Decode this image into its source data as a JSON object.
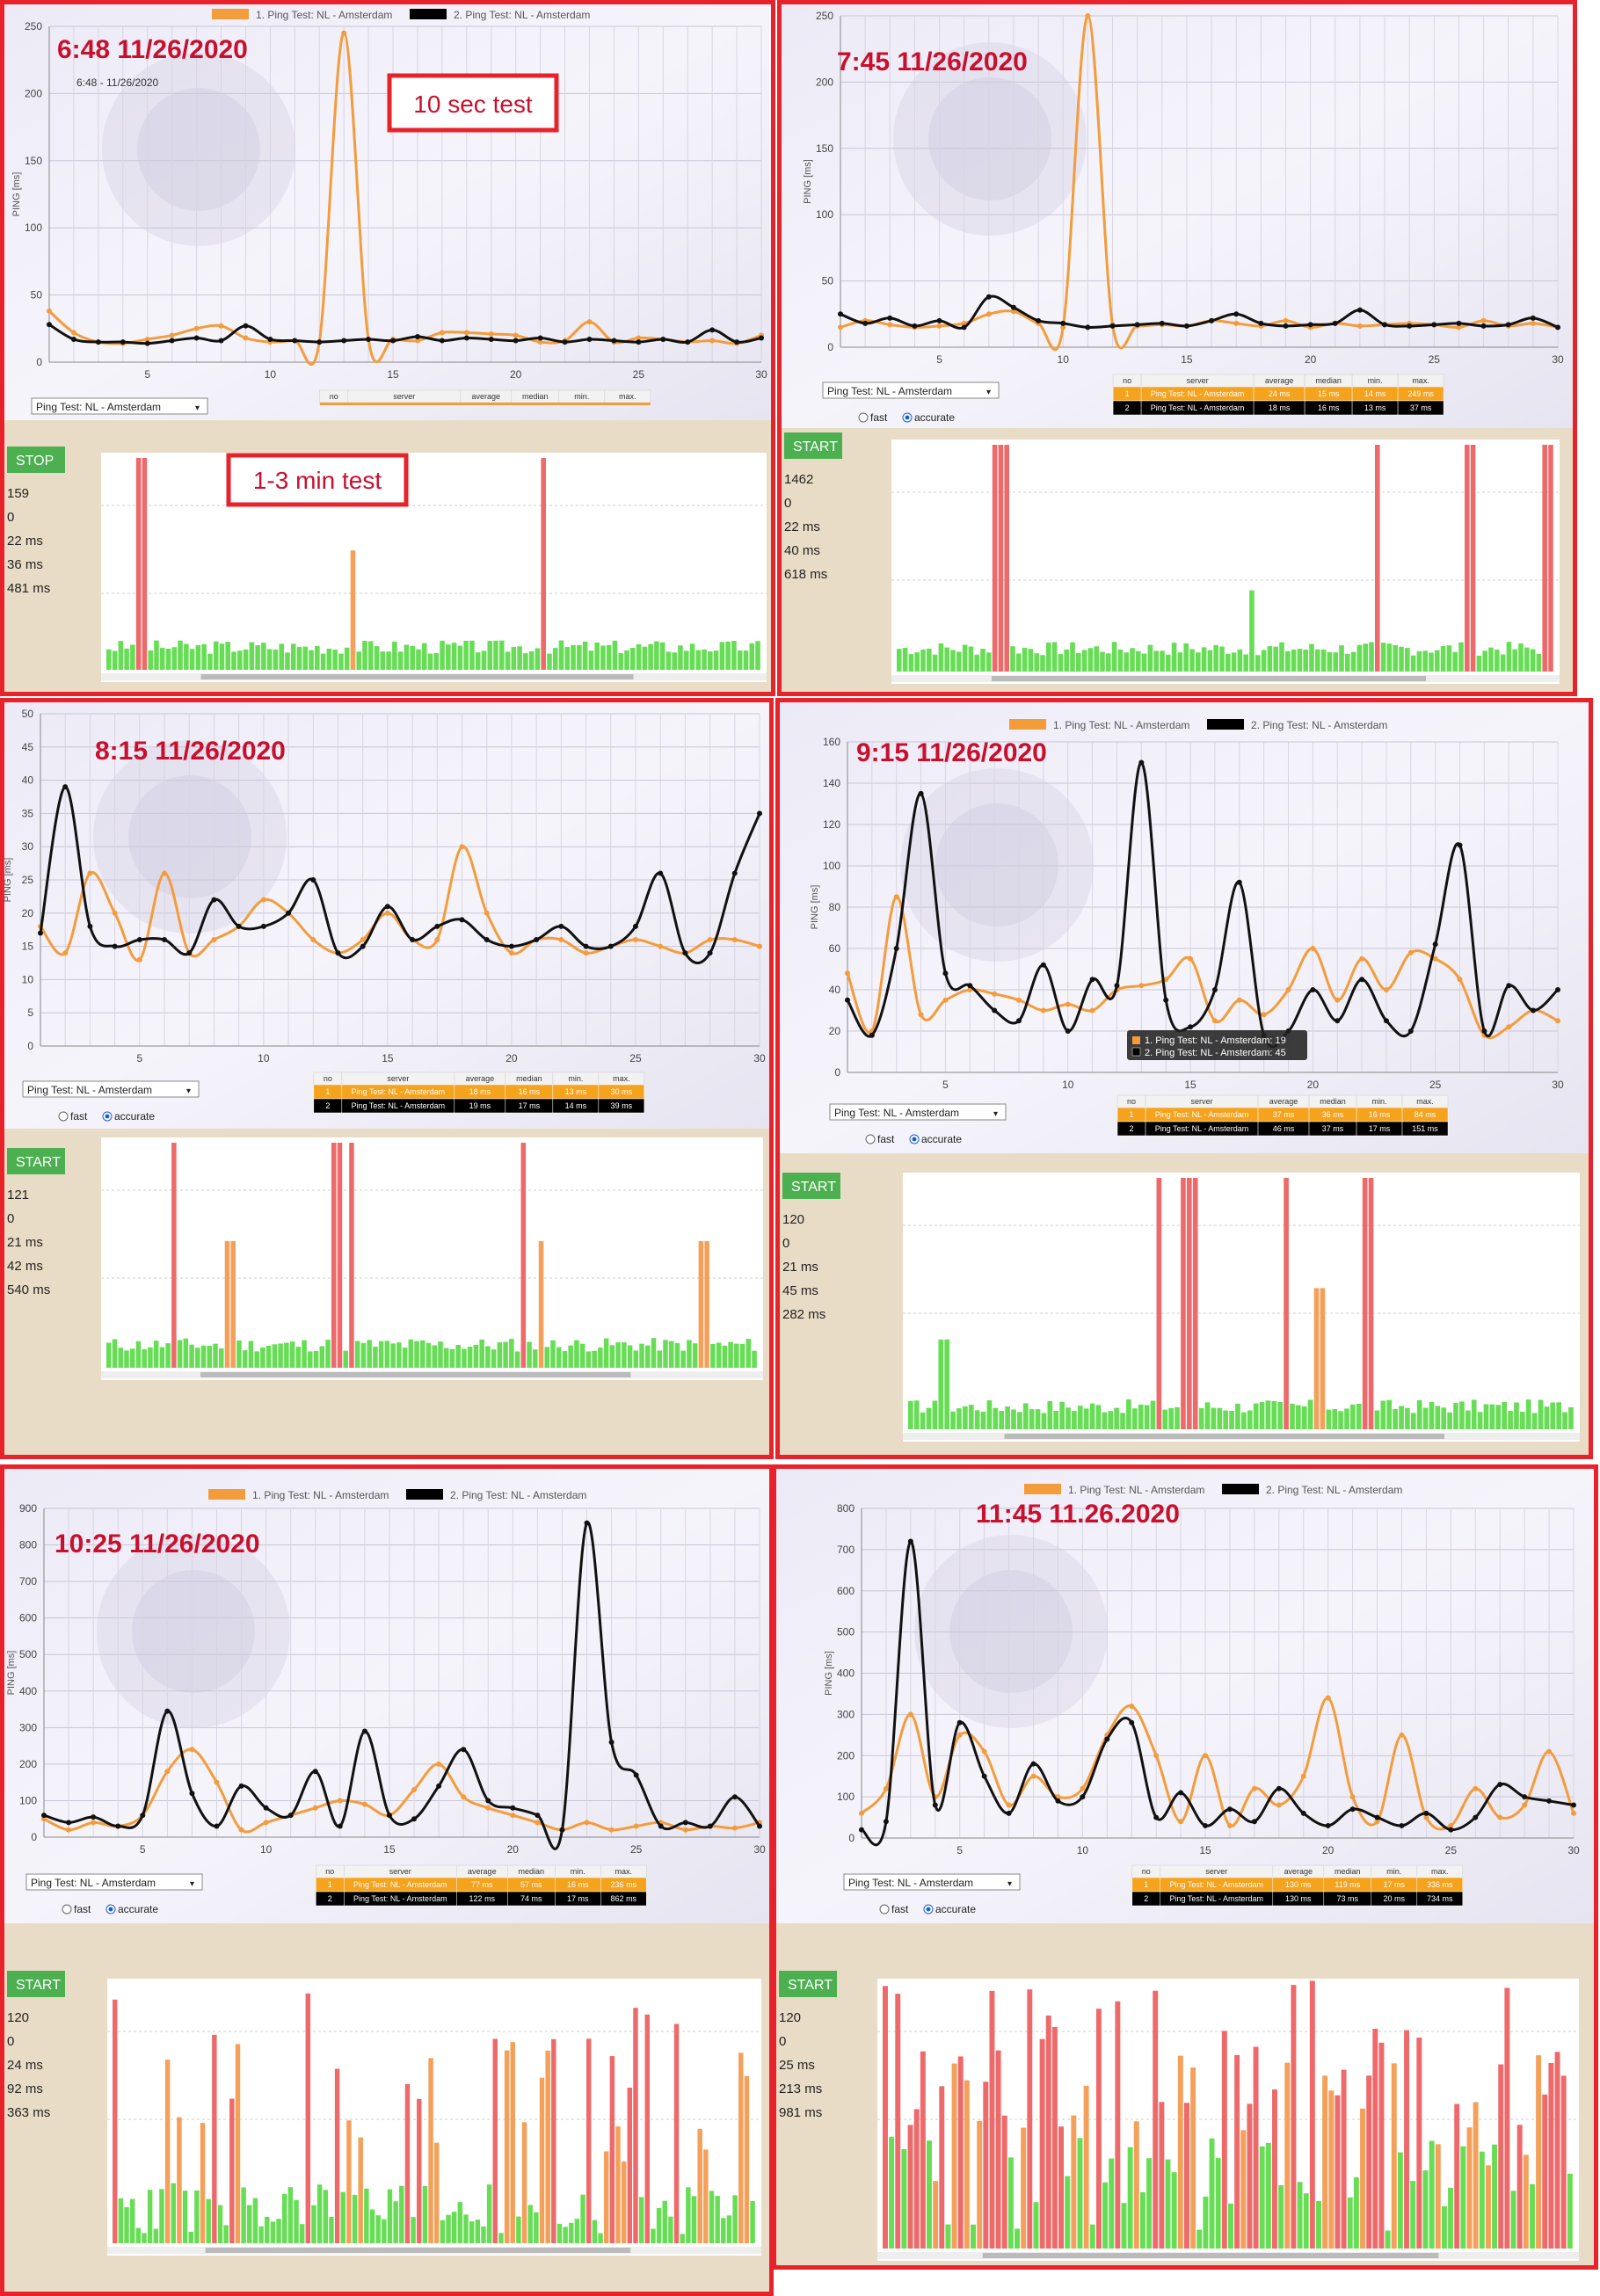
{
  "legend": {
    "series1": "1. Ping Test: NL - Amsterdam",
    "series2": "2. Ping Test: NL - Amsterdam",
    "series1_color": "#f39c3c",
    "series2_color": "#000000"
  },
  "axis_label": "PING [ms]",
  "table_headers": [
    "no",
    "server",
    "average",
    "median",
    "min.",
    "max."
  ],
  "server_select": "Ping Test: NL - Amsterdam",
  "radio_fast": "fast",
  "radio_accurate": "accurate",
  "unit": "ms",
  "colors": {
    "frame": "#e8222b",
    "start_btn": "#4caf50",
    "bar_green": "#66dd55",
    "bar_orange": "#f4a05a",
    "bar_red": "#ee6a6a",
    "timestamp": "#c8102e"
  },
  "annotations": {
    "ten_sec": "10 sec test",
    "one_three_min": "1-3 min test"
  },
  "tooltip": {
    "line1": "1. Ping Test: NL - Amsterdam: 19",
    "line2": "2. Ping Test: NL - Amsterdam: 45"
  },
  "chart_data": [
    {
      "id": "p1",
      "type": "line",
      "timestamp": "6:48 11/26/2020",
      "subtitle": "6:48 - 11/26/2020",
      "ylim": [
        0,
        250
      ],
      "yticks": [
        0,
        50,
        100,
        150,
        200,
        250
      ],
      "xticks": [
        5,
        10,
        15,
        20,
        25,
        30
      ],
      "series": [
        {
          "name": "1. Ping Test: NL - Amsterdam",
          "values": [
            38,
            22,
            15,
            14,
            17,
            20,
            25,
            27,
            18,
            15,
            16,
            15,
            245,
            17,
            17,
            16,
            22,
            22,
            21,
            20,
            15,
            16,
            30,
            15,
            18,
            17,
            15,
            16,
            14,
            20
          ]
        },
        {
          "name": "2. Ping Test: NL - Amsterdam",
          "values": [
            28,
            17,
            15,
            15,
            14,
            16,
            18,
            16,
            27,
            17,
            16,
            15,
            16,
            17,
            16,
            19,
            16,
            18,
            17,
            16,
            18,
            15,
            17,
            16,
            15,
            17,
            15,
            24,
            15,
            18
          ]
        }
      ],
      "table": [],
      "button": "STOP",
      "stats": [
        "159",
        "0",
        "22 ms",
        "36 ms",
        "481 ms"
      ]
    },
    {
      "id": "p2",
      "type": "line",
      "timestamp": "7:45 11/26/2020",
      "ylim": [
        0,
        250
      ],
      "yticks": [
        0,
        50,
        100,
        150,
        200,
        250
      ],
      "xticks": [
        5,
        10,
        15,
        20,
        25,
        30
      ],
      "series": [
        {
          "name": "1. Ping Test: NL - Amsterdam",
          "values": [
            15,
            20,
            17,
            15,
            16,
            18,
            25,
            27,
            18,
            15,
            250,
            17,
            16,
            17,
            16,
            20,
            18,
            16,
            20,
            15,
            18,
            16,
            17,
            18,
            17,
            15,
            20,
            16,
            18,
            15
          ]
        },
        {
          "name": "2. Ping Test: NL - Amsterdam",
          "values": [
            25,
            18,
            22,
            16,
            20,
            15,
            38,
            30,
            20,
            18,
            15,
            16,
            17,
            18,
            16,
            20,
            25,
            18,
            16,
            17,
            18,
            28,
            17,
            16,
            17,
            18,
            16,
            17,
            22,
            15
          ]
        }
      ],
      "table": [
        [
          "1",
          "Ping Test: NL - Amsterdam",
          "24 ms",
          "15 ms",
          "14 ms",
          "249 ms"
        ],
        [
          "2",
          "Ping Test: NL - Amsterdam",
          "18 ms",
          "16 ms",
          "13 ms",
          "37 ms"
        ]
      ],
      "button": "START",
      "stats": [
        "1462",
        "0",
        "22 ms",
        "40 ms",
        "618 ms"
      ]
    },
    {
      "id": "p3",
      "type": "line",
      "timestamp": "8:15 11/26/2020",
      "ylim": [
        0,
        50
      ],
      "yticks": [
        0,
        5,
        10,
        15,
        20,
        25,
        30,
        35,
        40,
        45,
        50
      ],
      "xticks": [
        5,
        10,
        15,
        20,
        25,
        30
      ],
      "series": [
        {
          "name": "1. Ping Test: NL - Amsterdam",
          "values": [
            18,
            14,
            26,
            20,
            13,
            26,
            14,
            16,
            18,
            22,
            20,
            16,
            14,
            16,
            20,
            16,
            16,
            30,
            20,
            14,
            16,
            16,
            14,
            15,
            16,
            15,
            14,
            16,
            16,
            15
          ]
        },
        {
          "name": "2. Ping Test: NL - Amsterdam",
          "values": [
            17,
            39,
            18,
            15,
            16,
            16,
            14,
            22,
            18,
            18,
            20,
            25,
            14,
            15,
            21,
            16,
            18,
            19,
            16,
            15,
            16,
            18,
            15,
            15,
            18,
            26,
            14,
            14,
            26,
            35
          ]
        }
      ],
      "table": [
        [
          "1",
          "Ping Test: NL - Amsterdam",
          "18 ms",
          "16 ms",
          "13 ms",
          "30 ms"
        ],
        [
          "2",
          "Ping Test: NL - Amsterdam",
          "19 ms",
          "17 ms",
          "14 ms",
          "39 ms"
        ]
      ],
      "button": "START",
      "stats": [
        "121",
        "0",
        "21 ms",
        "42 ms",
        "540 ms"
      ]
    },
    {
      "id": "p4",
      "type": "line",
      "timestamp": "9:15 11/26/2020",
      "ylim": [
        0,
        160
      ],
      "yticks": [
        0,
        20,
        40,
        60,
        80,
        100,
        120,
        140,
        160
      ],
      "xticks": [
        5,
        10,
        15,
        20,
        25,
        30
      ],
      "series": [
        {
          "name": "1. Ping Test: NL - Amsterdam",
          "values": [
            48,
            20,
            85,
            28,
            35,
            40,
            38,
            35,
            30,
            33,
            30,
            40,
            42,
            45,
            55,
            25,
            35,
            28,
            40,
            60,
            35,
            55,
            40,
            58,
            55,
            45,
            18,
            22,
            30,
            25
          ]
        },
        {
          "name": "2. Ping Test: NL - Amsterdam",
          "values": [
            35,
            18,
            60,
            135,
            48,
            42,
            30,
            25,
            52,
            20,
            45,
            42,
            150,
            35,
            22,
            40,
            92,
            18,
            20,
            40,
            25,
            45,
            25,
            20,
            62,
            110,
            20,
            42,
            30,
            40
          ]
        }
      ],
      "table": [
        [
          "1",
          "Ping Test: NL - Amsterdam",
          "37 ms",
          "36 ms",
          "16 ms",
          "84 ms"
        ],
        [
          "2",
          "Ping Test: NL - Amsterdam",
          "46 ms",
          "37 ms",
          "17 ms",
          "151 ms"
        ]
      ],
      "button": "START",
      "stats": [
        "120",
        "0",
        "21 ms",
        "45 ms",
        "282 ms"
      ]
    },
    {
      "id": "p5",
      "type": "line",
      "timestamp": "10:25 11/26/2020",
      "ylim": [
        0,
        900
      ],
      "yticks": [
        0,
        100,
        200,
        300,
        400,
        500,
        600,
        700,
        800,
        900
      ],
      "xticks": [
        5,
        10,
        15,
        20,
        25,
        30
      ],
      "series": [
        {
          "name": "1. Ping Test: NL - Amsterdam",
          "values": [
            50,
            20,
            40,
            30,
            60,
            180,
            240,
            150,
            20,
            40,
            60,
            80,
            100,
            90,
            60,
            130,
            200,
            110,
            80,
            60,
            40,
            20,
            40,
            20,
            30,
            40,
            20,
            30,
            25,
            40
          ]
        },
        {
          "name": "2. Ping Test: NL - Amsterdam",
          "values": [
            60,
            40,
            55,
            30,
            60,
            345,
            120,
            30,
            140,
            80,
            60,
            180,
            30,
            290,
            60,
            50,
            140,
            240,
            100,
            80,
            60,
            20,
            860,
            260,
            170,
            30,
            40,
            30,
            110,
            30
          ]
        }
      ],
      "table": [
        [
          "1",
          "Ping Test: NL - Amsterdam",
          "77 ms",
          "57 ms",
          "16 ms",
          "236 ms"
        ],
        [
          "2",
          "Ping Test: NL - Amsterdam",
          "122 ms",
          "74 ms",
          "17 ms",
          "862 ms"
        ]
      ],
      "button": "START",
      "stats": [
        "120",
        "0",
        "24 ms",
        "92 ms",
        "363 ms"
      ]
    },
    {
      "id": "p6",
      "type": "line",
      "timestamp": "11:45 11.26.2020",
      "ylim": [
        0,
        800
      ],
      "yticks": [
        0,
        100,
        200,
        300,
        400,
        500,
        600,
        700,
        800
      ],
      "xticks": [
        5,
        10,
        15,
        20,
        25,
        30
      ],
      "series": [
        {
          "name": "1. Ping Test: NL - Amsterdam",
          "values": [
            60,
            120,
            300,
            100,
            250,
            210,
            80,
            150,
            100,
            120,
            250,
            320,
            200,
            40,
            200,
            30,
            120,
            80,
            150,
            340,
            100,
            40,
            250,
            50,
            30,
            120,
            50,
            80,
            210,
            60
          ]
        },
        {
          "name": "2. Ping Test: NL - Amsterdam",
          "values": [
            20,
            40,
            720,
            80,
            280,
            150,
            60,
            180,
            90,
            100,
            240,
            280,
            50,
            110,
            30,
            70,
            40,
            120,
            60,
            30,
            70,
            50,
            30,
            60,
            20,
            50,
            130,
            100,
            90,
            80
          ]
        }
      ],
      "table": [
        [
          "1",
          "Ping Test: NL - Amsterdam",
          "130 ms",
          "119 ms",
          "17 ms",
          "336 ms"
        ],
        [
          "2",
          "Ping Test: NL - Amsterdam",
          "130 ms",
          "73 ms",
          "20 ms",
          "734 ms"
        ]
      ],
      "button": "START",
      "stats": [
        "120",
        "0",
        "25 ms",
        "213 ms",
        "981 ms"
      ]
    }
  ]
}
